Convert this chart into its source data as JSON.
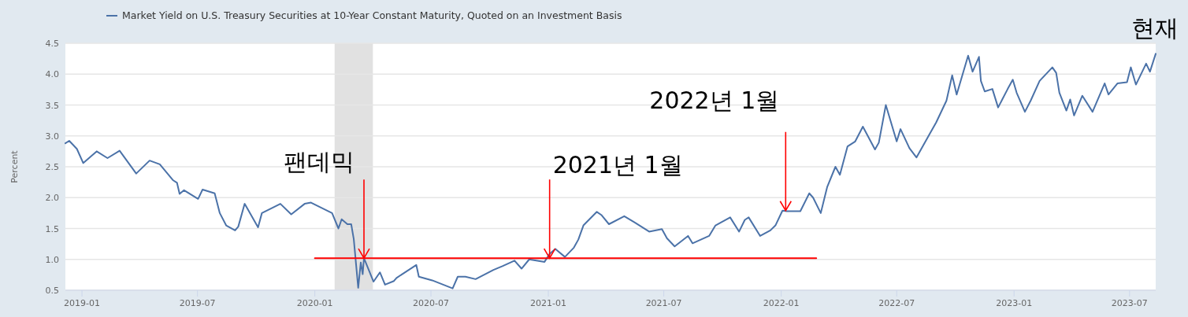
{
  "chart_data": {
    "type": "line",
    "ylabel": "Percent",
    "legend": "top",
    "grid": "y",
    "xlim": [
      "2018-12-06",
      "2023-08-11"
    ],
    "xticks": [
      "2019-01",
      "2019-07",
      "2020-01",
      "2020-07",
      "2021-01",
      "2021-07",
      "2022-01",
      "2022-07",
      "2023-01",
      "2023-07"
    ],
    "ylim": [
      0.5,
      4.5
    ],
    "yticks": [
      0.5,
      {
        "value": 1,
        "label": "1.0"
      },
      1.5,
      {
        "value": 2,
        "label": "2.0"
      },
      2.5,
      {
        "value": 3,
        "label": "3.0"
      },
      3.5,
      {
        "value": 4,
        "label": "4.0"
      },
      4.5
    ],
    "bands": [
      {
        "axis": "x",
        "from": "2020-02-01",
        "to": "2020-04-01",
        "color": "#e1e1e1"
      }
    ],
    "series": [
      {
        "name": "Market Yield on U.S. Treasury Securities at 10-Year Constant Maturity, Quoted on an Investment Basis",
        "color": "#4b72a8",
        "x": [
          "2018-12-06",
          "2018-12-12",
          "2018-12-24",
          "2019-01-03",
          "2019-01-24",
          "2019-02-10",
          "2019-03-01",
          "2019-03-27",
          "2019-04-17",
          "2019-05-03",
          "2019-05-24",
          "2019-05-30",
          "2019-06-03",
          "2019-06-10",
          "2019-07-02",
          "2019-07-09",
          "2019-07-28",
          "2019-08-05",
          "2019-08-15",
          "2019-08-29",
          "2019-09-03",
          "2019-09-13",
          "2019-10-04",
          "2019-10-10",
          "2019-11-08",
          "2019-11-25",
          "2019-12-16",
          "2019-12-26",
          "2020-01-28",
          "2020-02-07",
          "2020-02-12",
          "2020-02-21",
          "2020-02-27",
          "2020-03-02",
          "2020-03-09",
          "2020-03-13",
          "2020-03-16",
          "2020-03-18",
          "2020-04-02",
          "2020-04-12",
          "2020-04-20",
          "2020-05-04",
          "2020-05-08",
          "2020-06-08",
          "2020-06-12",
          "2020-07-03",
          "2020-08-04",
          "2020-08-12",
          "2020-08-24",
          "2020-09-09",
          "2020-10-07",
          "2020-10-21",
          "2020-11-09",
          "2020-11-20",
          "2020-12-02",
          "2020-12-26",
          "2021-01-03",
          "2021-01-12",
          "2021-01-27",
          "2021-02-10",
          "2021-02-17",
          "2021-02-25",
          "2021-03-18",
          "2021-03-25",
          "2021-04-06",
          "2021-04-30",
          "2021-05-16",
          "2021-06-08",
          "2021-06-28",
          "2021-07-06",
          "2021-07-18",
          "2021-08-08",
          "2021-08-15",
          "2021-09-10",
          "2021-09-20",
          "2021-10-13",
          "2021-10-27",
          "2021-11-05",
          "2021-11-11",
          "2021-11-29",
          "2021-12-15",
          "2021-12-23",
          "2022-01-03",
          "2022-01-10",
          "2022-01-31",
          "2022-02-14",
          "2022-02-20",
          "2022-03-04",
          "2022-03-14",
          "2022-03-27",
          "2022-04-03",
          "2022-04-15",
          "2022-04-27",
          "2022-05-09",
          "2022-05-28",
          "2022-06-03",
          "2022-06-14",
          "2022-07-01",
          "2022-07-07",
          "2022-07-21",
          "2022-08-01",
          "2022-08-20",
          "2022-09-01",
          "2022-09-17",
          "2022-09-26",
          "2022-10-03",
          "2022-10-21",
          "2022-10-28",
          "2022-11-07",
          "2022-11-10",
          "2022-11-16",
          "2022-11-28",
          "2022-12-07",
          "2022-12-22",
          "2022-12-30",
          "2023-01-05",
          "2023-01-18",
          "2023-01-27",
          "2023-02-10",
          "2023-03-02",
          "2023-03-08",
          "2023-03-13",
          "2023-03-24",
          "2023-03-30",
          "2023-04-05",
          "2023-04-18",
          "2023-05-04",
          "2023-05-23",
          "2023-05-29",
          "2023-06-12",
          "2023-06-27",
          "2023-07-03",
          "2023-07-11",
          "2023-07-27",
          "2023-08-02",
          "2023-08-11"
        ],
        "values": [
          2.88,
          2.92,
          2.79,
          2.56,
          2.75,
          2.64,
          2.76,
          2.39,
          2.6,
          2.54,
          2.28,
          2.24,
          2.06,
          2.12,
          1.98,
          2.13,
          2.07,
          1.75,
          1.55,
          1.47,
          1.53,
          1.9,
          1.52,
          1.75,
          1.9,
          1.73,
          1.9,
          1.92,
          1.75,
          1.5,
          1.65,
          1.57,
          1.57,
          1.33,
          0.54,
          0.95,
          0.76,
          1.02,
          0.64,
          0.79,
          0.59,
          0.65,
          0.7,
          0.91,
          0.72,
          0.66,
          0.53,
          0.72,
          0.72,
          0.68,
          0.83,
          0.89,
          0.98,
          0.85,
          1.0,
          0.96,
          1.09,
          1.17,
          1.04,
          1.19,
          1.32,
          1.55,
          1.77,
          1.72,
          1.57,
          1.7,
          1.6,
          1.45,
          1.49,
          1.34,
          1.21,
          1.38,
          1.26,
          1.38,
          1.55,
          1.68,
          1.45,
          1.64,
          1.68,
          1.38,
          1.47,
          1.55,
          1.79,
          1.78,
          1.78,
          2.07,
          2.0,
          1.75,
          2.17,
          2.5,
          2.37,
          2.83,
          2.91,
          3.15,
          2.78,
          2.89,
          3.5,
          2.91,
          3.11,
          2.8,
          2.65,
          3.0,
          3.22,
          3.57,
          3.98,
          3.67,
          4.3,
          4.04,
          4.28,
          3.89,
          3.72,
          3.76,
          3.46,
          3.76,
          3.91,
          3.7,
          3.39,
          3.57,
          3.89,
          4.11,
          4.02,
          3.7,
          3.41,
          3.59,
          3.33,
          3.65,
          3.39,
          3.85,
          3.67,
          3.85,
          3.87,
          4.11,
          3.83,
          4.17,
          4.04,
          4.33
        ]
      },
      {
        "color": "#ff0000",
        "x": [
          "2020-01-01",
          "2022-02-25"
        ],
        "values": [
          1.02,
          1.02
        ]
      }
    ],
    "annotations": [
      {
        "text": "팬데믹",
        "x": "2020-03-18",
        "y": 1.02
      },
      {
        "text": "2021년 1월",
        "x": "2021-01-03",
        "y": 1.02
      },
      {
        "text": "2022년 1월",
        "x": "2022-01-08",
        "y": 1.79
      },
      "현재"
    ]
  }
}
